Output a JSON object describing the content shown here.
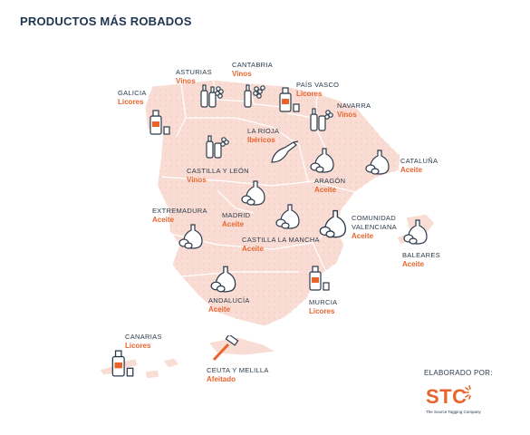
{
  "title": "PRODUCTOS MÁS ROBADOS",
  "colors": {
    "land": "#f9ddd5",
    "land_stroke": "#ffffff",
    "accent": "#e8642c",
    "text": "#2b3a4a",
    "icon": "#2b3a4a"
  },
  "regions": [
    {
      "id": "asturias",
      "name": "ASTURIAS",
      "product": "Vinos",
      "icon": "wine-icon"
    },
    {
      "id": "cantabria",
      "name": "CANTABRIA",
      "product": "Vinos",
      "icon": "wine-icon"
    },
    {
      "id": "pais-vasco",
      "name": "PAÍS VASCO",
      "product": "Licores",
      "icon": "liquor-icon"
    },
    {
      "id": "galicia",
      "name": "GALICIA",
      "product": "Licores",
      "icon": "liquor-icon"
    },
    {
      "id": "navarra",
      "name": "NAVARRA",
      "product": "Vinos",
      "icon": "wine-icon"
    },
    {
      "id": "la-rioja",
      "name": "LA RIOJA",
      "product": "Ibéricos",
      "icon": "ham-icon"
    },
    {
      "id": "castilla-leon",
      "name": "CASTILLA Y LEÓN",
      "product": "Vinos",
      "icon": "wine-icon"
    },
    {
      "id": "cataluna",
      "name": "CATALUÑA",
      "product": "Aceite",
      "icon": "oil-icon"
    },
    {
      "id": "aragon",
      "name": "ARAGÓN",
      "product": "Aceite",
      "icon": "oil-icon"
    },
    {
      "id": "extremadura",
      "name": "EXTREMADURA",
      "product": "Aceite",
      "icon": "oil-icon"
    },
    {
      "id": "madrid",
      "name": "MADRID",
      "product": "Aceite",
      "icon": "oil-icon"
    },
    {
      "id": "comunidad-valenciana",
      "name": "COMUNIDAD VALENCIANA",
      "product": "Aceite",
      "icon": "oil-icon"
    },
    {
      "id": "castilla-la-mancha",
      "name": "CASTILLA LA MANCHA",
      "product": "Aceite",
      "icon": "oil-icon"
    },
    {
      "id": "baleares",
      "name": "BALEARES",
      "product": "Aceite",
      "icon": "oil-icon"
    },
    {
      "id": "andalucia",
      "name": "ANDALUCÍA",
      "product": "Aceite",
      "icon": "oil-icon"
    },
    {
      "id": "murcia",
      "name": "MURCIA",
      "product": "Licores",
      "icon": "liquor-icon"
    },
    {
      "id": "canarias",
      "name": "CANARIAS",
      "product": "Licores",
      "icon": "liquor-icon"
    },
    {
      "id": "ceuta-melilla",
      "name": "CEUTA Y MELILLA",
      "product": "Afeitado",
      "icon": "razor-icon"
    }
  ],
  "credit": "ELABORADO POR:",
  "logo": {
    "text": "STC",
    "subtitle": "The Source Tagging Company"
  }
}
